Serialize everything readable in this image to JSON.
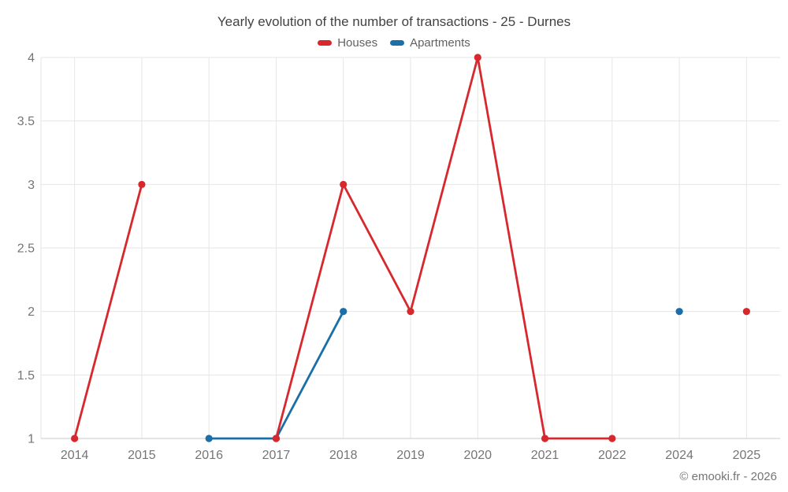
{
  "title": "Yearly evolution of the number of transactions - 25 - Durnes",
  "footer": "© emooki.fr - 2026",
  "chart_data": {
    "type": "line",
    "title": "Yearly evolution of the number of transactions - 25 - Durnes",
    "xlabel": "",
    "ylabel": "",
    "categories": [
      "2014",
      "2015",
      "2016",
      "2017",
      "2018",
      "2019",
      "2020",
      "2021",
      "2022",
      "2024",
      "2025"
    ],
    "series": [
      {
        "name": "Houses",
        "color": "#d7282e",
        "values": [
          1,
          3,
          null,
          1,
          3,
          2,
          4,
          1,
          1,
          null,
          2
        ]
      },
      {
        "name": "Apartments",
        "color": "#1a6fa8",
        "values": [
          null,
          null,
          1,
          1,
          2,
          null,
          null,
          null,
          null,
          2,
          null
        ]
      }
    ],
    "ylim": [
      1,
      4
    ],
    "y_ticks": [
      1,
      1.5,
      2,
      2.5,
      3,
      3.5,
      4
    ],
    "grid": true,
    "legend_position": "top"
  }
}
